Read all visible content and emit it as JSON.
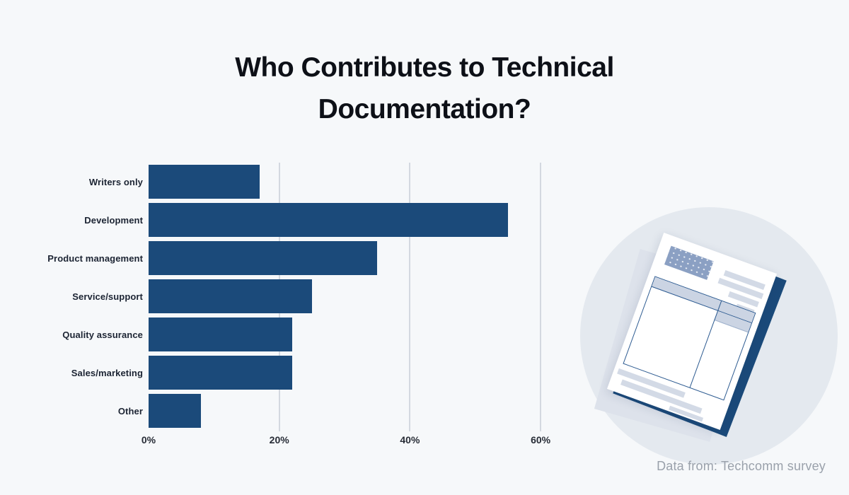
{
  "title": {
    "line1": "Who Contributes to Technical",
    "line2": "Documentation?"
  },
  "chart_data": {
    "type": "bar",
    "orientation": "horizontal",
    "title": "Who Contributes to Technical Documentation?",
    "categories": [
      "Writers only",
      "Development",
      "Product management",
      "Service/support",
      "Quality assurance",
      "Sales/marketing",
      "Other"
    ],
    "values": [
      17,
      55,
      35,
      25,
      22,
      22,
      8
    ],
    "unit": "%",
    "xlabel": "",
    "ylabel": "",
    "x_ticks": [
      {
        "label": "0%",
        "value": 0
      },
      {
        "label": "20%",
        "value": 20
      },
      {
        "label": "40%",
        "value": 40
      },
      {
        "label": "60%",
        "value": 60
      }
    ],
    "xlim": [
      0,
      63
    ],
    "grid": "vertical-lines-at-20-40-60",
    "legend": "none",
    "bar_color": "#1b4a7a",
    "gridline_color": "#d3d8e0",
    "background_color": "#f6f8fa"
  },
  "illustration": {
    "name": "stacked-document-pages-in-circle",
    "circle_color": "#e4e9ef",
    "back_sheet_color": "#1b4a7a",
    "accent_color": "#8ba0c3"
  },
  "footer": {
    "source_text": "Data from: Techcomm survey"
  }
}
